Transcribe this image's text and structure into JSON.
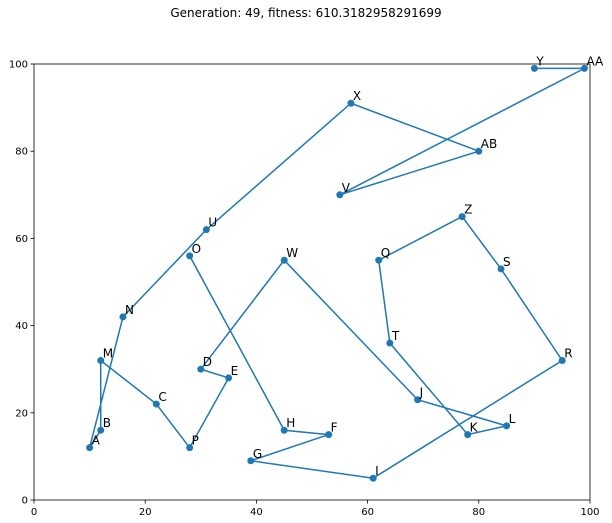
{
  "chart_data": {
    "type": "line",
    "title": "Generation: 49, fitness: 610.3182958291699",
    "xlabel": "",
    "ylabel": "",
    "xlim": [
      0,
      100
    ],
    "ylim": [
      0,
      100
    ],
    "xticks": [
      0,
      20,
      40,
      60,
      80,
      100
    ],
    "yticks": [
      0,
      20,
      40,
      60,
      80,
      100
    ],
    "grid": false,
    "color": "#1f77b4",
    "cities": [
      {
        "label": "A",
        "x": 10,
        "y": 12
      },
      {
        "label": "B",
        "x": 12,
        "y": 16
      },
      {
        "label": "C",
        "x": 22,
        "y": 22
      },
      {
        "label": "D",
        "x": 30,
        "y": 30
      },
      {
        "label": "E",
        "x": 35,
        "y": 28
      },
      {
        "label": "F",
        "x": 53,
        "y": 15
      },
      {
        "label": "G",
        "x": 39,
        "y": 9
      },
      {
        "label": "H",
        "x": 45,
        "y": 16
      },
      {
        "label": "I",
        "x": 61,
        "y": 5
      },
      {
        "label": "J",
        "x": 69,
        "y": 23
      },
      {
        "label": "K",
        "x": 78,
        "y": 15
      },
      {
        "label": "L",
        "x": 85,
        "y": 17
      },
      {
        "label": "M",
        "x": 12,
        "y": 32
      },
      {
        "label": "N",
        "x": 16,
        "y": 42
      },
      {
        "label": "O",
        "x": 28,
        "y": 56
      },
      {
        "label": "P",
        "x": 28,
        "y": 12
      },
      {
        "label": "Q",
        "x": 62,
        "y": 55
      },
      {
        "label": "R",
        "x": 95,
        "y": 32
      },
      {
        "label": "S",
        "x": 84,
        "y": 53
      },
      {
        "label": "T",
        "x": 64,
        "y": 36
      },
      {
        "label": "U",
        "x": 31,
        "y": 62
      },
      {
        "label": "V",
        "x": 55,
        "y": 70
      },
      {
        "label": "W",
        "x": 45,
        "y": 55
      },
      {
        "label": "X",
        "x": 57,
        "y": 91
      },
      {
        "label": "Y",
        "x": 90,
        "y": 99
      },
      {
        "label": "Z",
        "x": 77,
        "y": 65
      },
      {
        "label": "AA",
        "x": 99,
        "y": 99
      },
      {
        "label": "AB",
        "x": 80,
        "y": 80
      }
    ],
    "route": [
      "Y",
      "AA",
      "V",
      "AB",
      "X",
      "U",
      "N",
      "A",
      "B",
      "M",
      "C",
      "P",
      "E",
      "D",
      "W",
      "J",
      "L",
      "K",
      "T",
      "Q",
      "Z",
      "S",
      "R",
      "I",
      "G",
      "F",
      "H",
      "O"
    ]
  }
}
